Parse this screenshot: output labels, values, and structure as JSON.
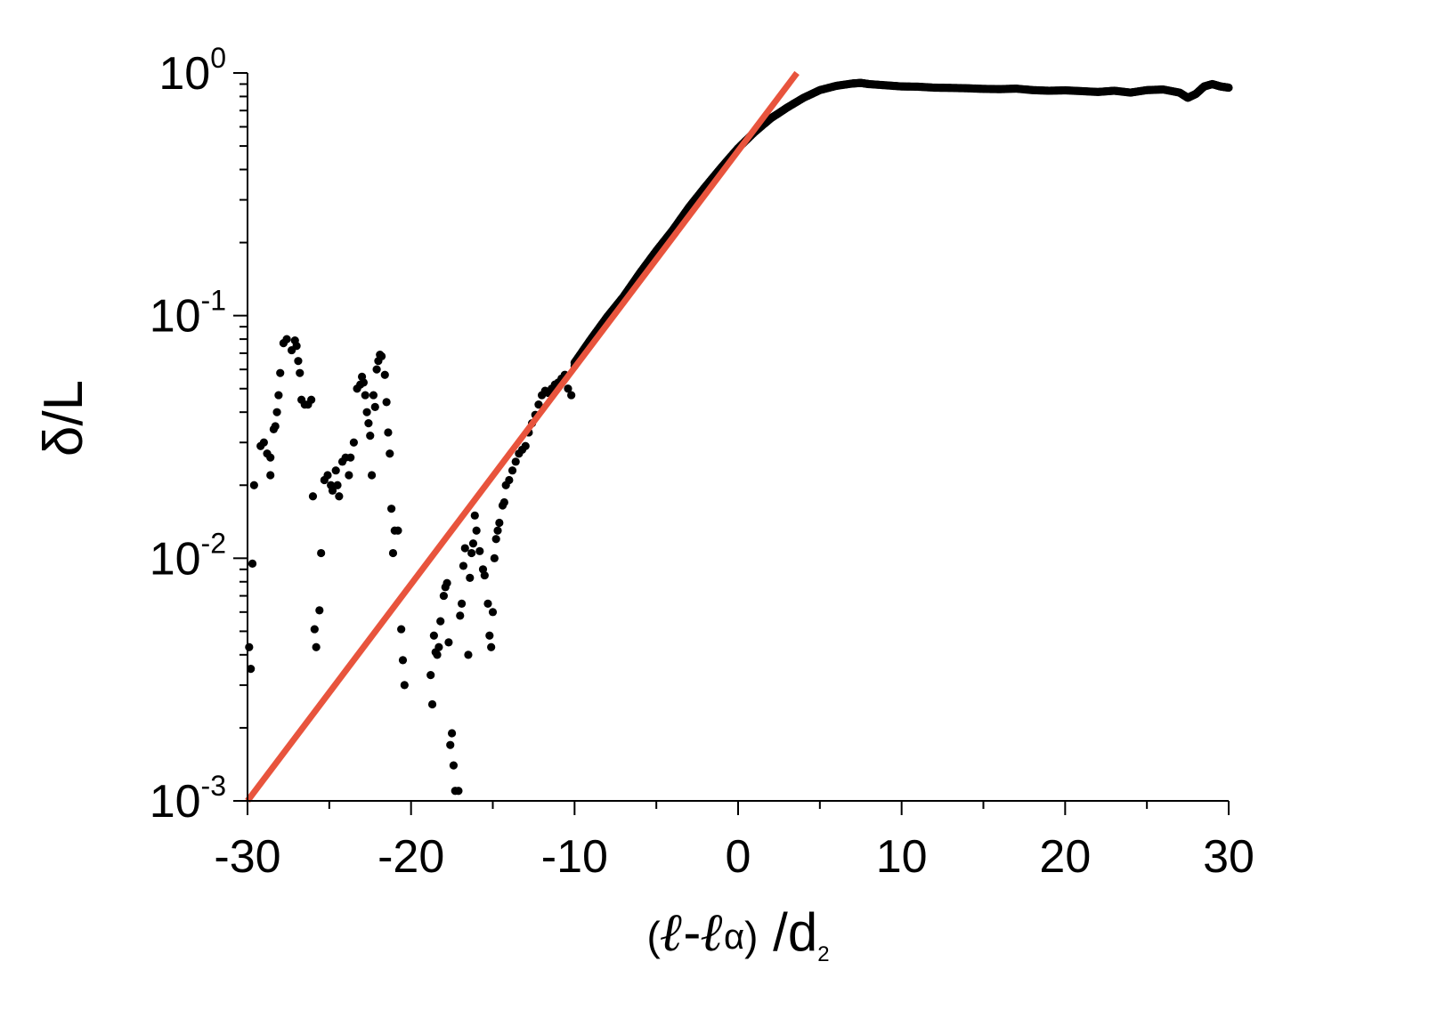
{
  "chart_data": {
    "type": "scatter",
    "xlabel": {
      "open": "(",
      "l1": "ℓ",
      "minus": "-",
      "l2": "ℓ",
      "alpha": "α",
      "close": ")",
      "slash_d": " /d",
      "sub": "2"
    },
    "ylabel": "δ/L",
    "xlim": [
      -30,
      30
    ],
    "ylim": [
      0.001,
      1
    ],
    "yscale": "log",
    "xticks": [
      {
        "value": -30,
        "label": "-30"
      },
      {
        "value": -20,
        "label": "-20"
      },
      {
        "value": -10,
        "label": "-10"
      },
      {
        "value": 0,
        "label": "0"
      },
      {
        "value": 10,
        "label": "10"
      },
      {
        "value": 20,
        "label": "20"
      },
      {
        "value": 30,
        "label": "30"
      }
    ],
    "yticks": [
      {
        "value": 1,
        "base": "10",
        "exp": "0"
      },
      {
        "value": 0.1,
        "base": "10",
        "exp": "-1"
      },
      {
        "value": 0.01,
        "base": "10",
        "exp": "-2"
      },
      {
        "value": 0.001,
        "base": "10",
        "exp": "-3"
      }
    ],
    "grid": false,
    "series": [
      {
        "kind": "scatter",
        "color": "#000000",
        "scattered_points": [
          [
            -29.9,
            0.0043
          ],
          [
            -29.8,
            0.0035
          ],
          [
            -29.7,
            0.0095
          ],
          [
            -29.6,
            0.02
          ],
          [
            -29.2,
            0.029
          ],
          [
            -29.0,
            0.03
          ],
          [
            -28.8,
            0.027
          ],
          [
            -28.6,
            0.026
          ],
          [
            -28.6,
            0.022
          ],
          [
            -28.4,
            0.034
          ],
          [
            -28.3,
            0.035
          ],
          [
            -28.2,
            0.04
          ],
          [
            -28.1,
            0.047
          ],
          [
            -28.0,
            0.058
          ],
          [
            -27.8,
            0.077
          ],
          [
            -27.6,
            0.08
          ],
          [
            -27.3,
            0.072
          ],
          [
            -27.1,
            0.079
          ],
          [
            -27.0,
            0.075
          ],
          [
            -26.9,
            0.065
          ],
          [
            -26.8,
            0.058
          ],
          [
            -26.7,
            0.045
          ],
          [
            -26.5,
            0.043
          ],
          [
            -26.3,
            0.043
          ],
          [
            -26.1,
            0.045
          ],
          [
            -26.0,
            0.018
          ],
          [
            -25.9,
            0.0051
          ],
          [
            -25.8,
            0.0043
          ],
          [
            -25.6,
            0.0061
          ],
          [
            -25.5,
            0.0105
          ],
          [
            -25.3,
            0.021
          ],
          [
            -25.1,
            0.022
          ],
          [
            -24.9,
            0.02
          ],
          [
            -24.8,
            0.019
          ],
          [
            -24.6,
            0.023
          ],
          [
            -24.5,
            0.02
          ],
          [
            -24.4,
            0.018
          ],
          [
            -24.2,
            0.025
          ],
          [
            -24.0,
            0.026
          ],
          [
            -23.8,
            0.022
          ],
          [
            -23.7,
            0.026
          ],
          [
            -23.5,
            0.03
          ],
          [
            -23.3,
            0.05
          ],
          [
            -23.1,
            0.052
          ],
          [
            -23.0,
            0.056
          ],
          [
            -22.9,
            0.053
          ],
          [
            -22.8,
            0.047
          ],
          [
            -22.7,
            0.04
          ],
          [
            -22.6,
            0.036
          ],
          [
            -22.5,
            0.032
          ],
          [
            -22.4,
            0.022
          ],
          [
            -22.3,
            0.047
          ],
          [
            -22.2,
            0.042
          ],
          [
            -22.1,
            0.06
          ],
          [
            -22.0,
            0.065
          ],
          [
            -21.9,
            0.069
          ],
          [
            -21.8,
            0.068
          ],
          [
            -21.6,
            0.057
          ],
          [
            -21.5,
            0.044
          ],
          [
            -21.4,
            0.033
          ],
          [
            -21.3,
            0.027
          ],
          [
            -21.2,
            0.016
          ],
          [
            -21.1,
            0.0105
          ],
          [
            -21.0,
            0.013
          ],
          [
            -20.8,
            0.013
          ],
          [
            -20.6,
            0.0051
          ],
          [
            -20.5,
            0.0038
          ],
          [
            -20.4,
            0.003
          ],
          [
            -18.8,
            0.0033
          ],
          [
            -18.7,
            0.0025
          ],
          [
            -18.6,
            0.0048
          ],
          [
            -18.5,
            0.0041
          ],
          [
            -18.4,
            0.004
          ],
          [
            -18.3,
            0.0043
          ],
          [
            -18.2,
            0.0055
          ],
          [
            -18.0,
            0.007
          ],
          [
            -17.9,
            0.0076
          ],
          [
            -17.8,
            0.0079
          ],
          [
            -17.7,
            0.0045
          ],
          [
            -17.6,
            0.0017
          ],
          [
            -17.5,
            0.0019
          ],
          [
            -17.4,
            0.0014
          ],
          [
            -17.3,
            0.0011
          ],
          [
            -17.1,
            0.0011
          ],
          [
            -17.0,
            0.0058
          ],
          [
            -16.9,
            0.0065
          ],
          [
            -16.8,
            0.0093
          ],
          [
            -16.7,
            0.011
          ],
          [
            -16.5,
            0.004
          ],
          [
            -16.4,
            0.0083
          ],
          [
            -16.3,
            0.0105
          ],
          [
            -16.2,
            0.0115
          ],
          [
            -16.1,
            0.015
          ],
          [
            -16.0,
            0.013
          ],
          [
            -15.8,
            0.0107
          ],
          [
            -15.6,
            0.009
          ],
          [
            -15.5,
            0.0085
          ],
          [
            -15.3,
            0.0065
          ],
          [
            -15.2,
            0.0048
          ],
          [
            -15.1,
            0.0043
          ],
          [
            -15.0,
            0.006
          ],
          [
            -14.9,
            0.01
          ],
          [
            -14.8,
            0.012
          ],
          [
            -14.7,
            0.013
          ],
          [
            -14.6,
            0.014
          ],
          [
            -14.4,
            0.0165
          ],
          [
            -14.3,
            0.017
          ],
          [
            -14.2,
            0.02
          ],
          [
            -14.0,
            0.021
          ],
          [
            -13.8,
            0.023
          ],
          [
            -13.6,
            0.025
          ],
          [
            -13.4,
            0.027
          ],
          [
            -13.2,
            0.028
          ],
          [
            -13.0,
            0.029
          ],
          [
            -12.8,
            0.033
          ],
          [
            -12.6,
            0.036
          ],
          [
            -12.4,
            0.039
          ],
          [
            -12.2,
            0.043
          ],
          [
            -12.0,
            0.047
          ],
          [
            -11.8,
            0.049
          ],
          [
            -11.6,
            0.048
          ],
          [
            -11.4,
            0.05
          ],
          [
            -11.2,
            0.052
          ],
          [
            -11.0,
            0.053
          ],
          [
            -10.8,
            0.055
          ],
          [
            -10.6,
            0.057
          ],
          [
            -10.4,
            0.05
          ],
          [
            -10.2,
            0.047
          ],
          [
            -10.0,
            0.062
          ]
        ],
        "dense_curve": [
          [
            -10.0,
            0.064
          ],
          [
            -9.0,
            0.08
          ],
          [
            -8.0,
            0.099
          ],
          [
            -7.0,
            0.12
          ],
          [
            -6.0,
            0.15
          ],
          [
            -5.0,
            0.185
          ],
          [
            -4.0,
            0.225
          ],
          [
            -3.0,
            0.28
          ],
          [
            -2.0,
            0.34
          ],
          [
            -1.0,
            0.41
          ],
          [
            0.0,
            0.49
          ],
          [
            1.0,
            0.57
          ],
          [
            2.0,
            0.65
          ],
          [
            3.0,
            0.72
          ],
          [
            4.0,
            0.79
          ],
          [
            5.0,
            0.85
          ],
          [
            6.0,
            0.885
          ],
          [
            7.0,
            0.905
          ],
          [
            7.5,
            0.91
          ],
          [
            8.0,
            0.9
          ],
          [
            9.0,
            0.89
          ],
          [
            10.0,
            0.88
          ],
          [
            11.0,
            0.878
          ],
          [
            12.0,
            0.87
          ],
          [
            13.0,
            0.868
          ],
          [
            14.0,
            0.865
          ],
          [
            15.0,
            0.86
          ],
          [
            16.0,
            0.858
          ],
          [
            17.0,
            0.862
          ],
          [
            18.0,
            0.85
          ],
          [
            19.0,
            0.845
          ],
          [
            20.0,
            0.848
          ],
          [
            21.0,
            0.842
          ],
          [
            22.0,
            0.835
          ],
          [
            23.0,
            0.845
          ],
          [
            24.0,
            0.83
          ],
          [
            25.0,
            0.85
          ],
          [
            26.0,
            0.855
          ],
          [
            27.0,
            0.83
          ],
          [
            27.5,
            0.79
          ],
          [
            28.0,
            0.82
          ],
          [
            28.5,
            0.88
          ],
          [
            29.0,
            0.9
          ],
          [
            29.5,
            0.88
          ],
          [
            30.0,
            0.87
          ]
        ]
      },
      {
        "kind": "line",
        "color": "#e8543d",
        "points": [
          [
            -30,
            0.001
          ],
          [
            3.6,
            1.0
          ]
        ]
      }
    ]
  }
}
